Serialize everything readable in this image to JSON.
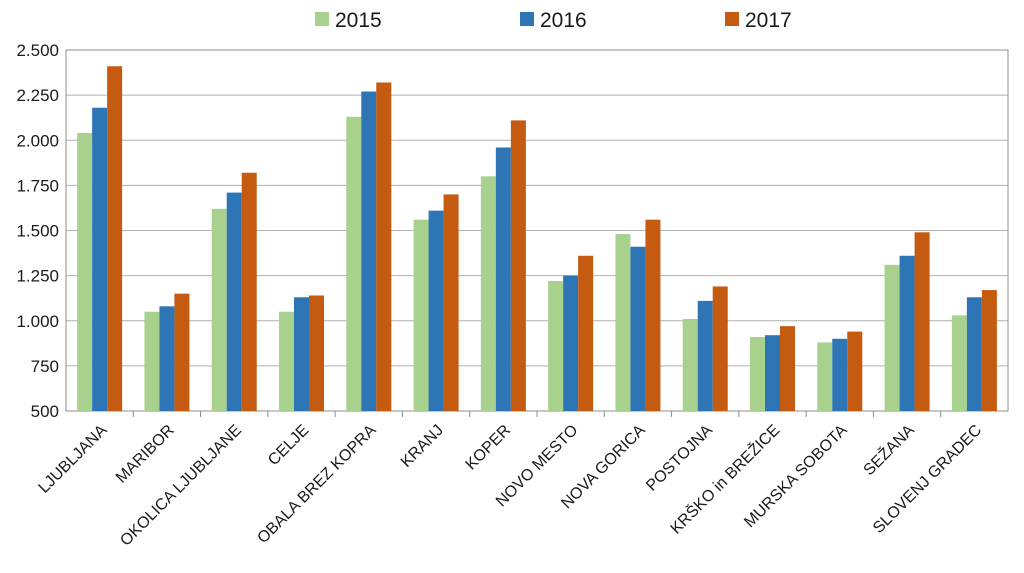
{
  "chart_data": {
    "type": "bar",
    "title": "",
    "xlabel": "",
    "ylabel": "",
    "categories": [
      "LJUBLJANA",
      "MARIBOR",
      "OKOLICA LJUBLJANE",
      "CELJE",
      "OBALA BREZ KOPRA",
      "KRANJ",
      "KOPER",
      "NOVO MESTO",
      "NOVA GORICA",
      "POSTOJNA",
      "KRŠKO in BREŽICE",
      "MURSKA SOBOTA",
      "SEŽANA",
      "SLOVENJ GRADEC"
    ],
    "series": [
      {
        "name": "2015",
        "color": "#a9d18e",
        "values": [
          2040,
          1050,
          1620,
          1050,
          2130,
          1560,
          1800,
          1220,
          1480,
          1010,
          910,
          880,
          1310,
          1030
        ]
      },
      {
        "name": "2016",
        "color": "#2e75b6",
        "values": [
          2180,
          1080,
          1710,
          1130,
          2270,
          1610,
          1960,
          1250,
          1410,
          1110,
          920,
          900,
          1360,
          1130
        ]
      },
      {
        "name": "2017",
        "color": "#c55a11",
        "values": [
          2410,
          1150,
          1820,
          1140,
          2320,
          1700,
          2110,
          1360,
          1560,
          1190,
          970,
          940,
          1490,
          1170
        ]
      }
    ],
    "ylim": [
      500,
      2500
    ],
    "yticks": [
      500,
      750,
      1000,
      1250,
      1500,
      1750,
      2000,
      2250,
      2500
    ],
    "ytick_labels": [
      "500",
      "750",
      "1.000",
      "1.250",
      "1.500",
      "1.750",
      "2.000",
      "2.250",
      "2.500"
    ],
    "grid": true,
    "legend_position": "top-center"
  }
}
